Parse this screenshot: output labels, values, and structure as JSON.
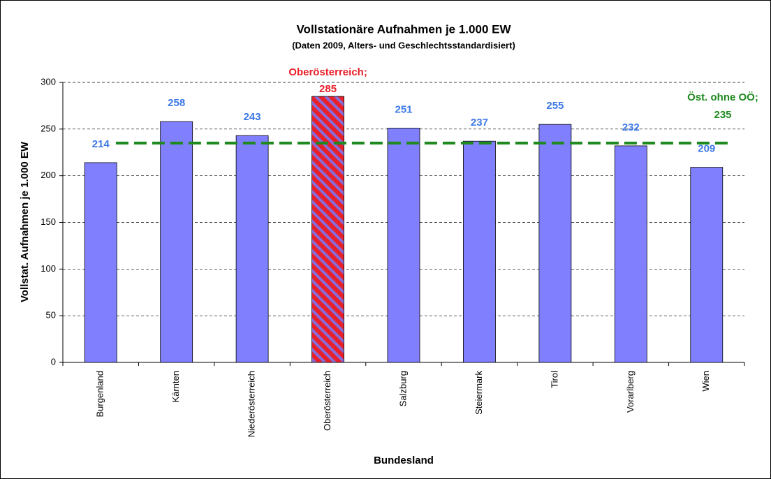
{
  "chart_data": {
    "type": "bar",
    "title": "Vollstationäre Aufnahmen je 1.000 EW",
    "subtitle": "(Daten 2009, Alters- und Geschlechtsstandardisiert)",
    "y_label": "Vollstat. Aufnahmen je 1.000 EW",
    "x_label": "Bundesland",
    "categories": [
      "Burgenland",
      "Kärnten",
      "Niederösterreich",
      "Oberösterreich",
      "Salzburg",
      "Steiermark",
      "Tirol",
      "Vorarlberg",
      "Wien"
    ],
    "values": [
      214,
      258,
      243,
      285,
      251,
      237,
      255,
      232,
      209
    ],
    "color": "#8080ff",
    "label_color": "#3c78e6",
    "highlight_index": 3,
    "highlight_color": "#e8202a",
    "highlight_label": "Oberösterreich;",
    "reference_line": {
      "name": "Öst. ohne OÖ;",
      "value": 235,
      "color": "#1f8a1f"
    },
    "ylim": [
      0,
      300
    ],
    "yticks": [
      0,
      50,
      100,
      150,
      200,
      250,
      300
    ],
    "grid": true
  }
}
